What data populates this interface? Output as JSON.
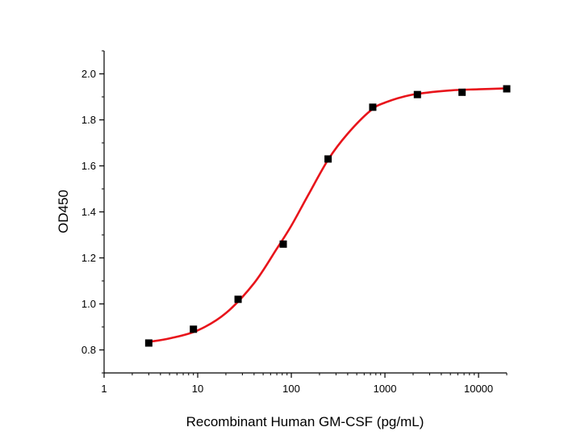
{
  "chart_data": {
    "type": "scatter",
    "title": "",
    "xlabel": "Recombinant Human GM-CSF (pg/mL)",
    "ylabel": "OD450",
    "x_scale": "log",
    "xlim": [
      1,
      20000
    ],
    "ylim": [
      0.7,
      2.1
    ],
    "x_ticks": [
      1,
      10,
      100,
      1000,
      10000
    ],
    "x_tick_labels": [
      "1",
      "10",
      "100",
      "1000",
      "10000"
    ],
    "y_ticks": [
      0.8,
      1.0,
      1.2,
      1.4,
      1.6,
      1.8,
      2.0
    ],
    "y_tick_labels": [
      "0.8",
      "1.0",
      "1.2",
      "1.4",
      "1.6",
      "1.8",
      "2.0"
    ],
    "grid": false,
    "series": [
      {
        "kind": "points",
        "marker": "square",
        "color": "#000000",
        "x": [
          3,
          9,
          27,
          82,
          247,
          741,
          2222,
          6667,
          20000
        ],
        "y": [
          0.83,
          0.89,
          1.02,
          1.26,
          1.63,
          1.855,
          1.91,
          1.92,
          1.935
        ]
      },
      {
        "kind": "fit-curve",
        "color": "#e8141b",
        "x": [
          3,
          5,
          10,
          20,
          40,
          70,
          100,
          150,
          250,
          400,
          700,
          1000,
          2000,
          5000,
          10000,
          20000
        ],
        "y": [
          0.835,
          0.85,
          0.885,
          0.96,
          1.09,
          1.24,
          1.34,
          1.47,
          1.63,
          1.74,
          1.84,
          1.875,
          1.91,
          1.928,
          1.933,
          1.937
        ]
      }
    ]
  }
}
